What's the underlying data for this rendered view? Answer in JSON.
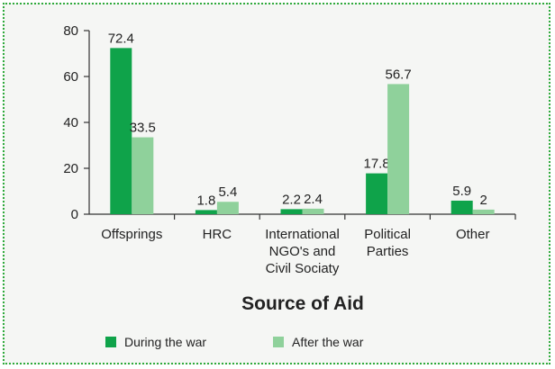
{
  "chart_data": {
    "type": "bar",
    "title": "",
    "xlabel": "Source of Aid",
    "ylabel": "",
    "ylim": [
      0,
      80
    ],
    "yticks": [
      0,
      20,
      40,
      60,
      80
    ],
    "grid": false,
    "legend_position": "bottom",
    "categories": [
      [
        "Offsprings"
      ],
      [
        "HRC"
      ],
      [
        "International",
        "NGO's and",
        "Civil Sociaty"
      ],
      [
        "Political",
        "Parties"
      ],
      [
        "Other"
      ]
    ],
    "series": [
      {
        "name": "During the war",
        "color": "#0fa34a",
        "values": [
          72.4,
          1.8,
          2.2,
          17.8,
          5.9
        ]
      },
      {
        "name": "After the war",
        "color": "#8fd19b",
        "values": [
          33.5,
          5.4,
          2.4,
          56.7,
          2
        ]
      }
    ]
  }
}
